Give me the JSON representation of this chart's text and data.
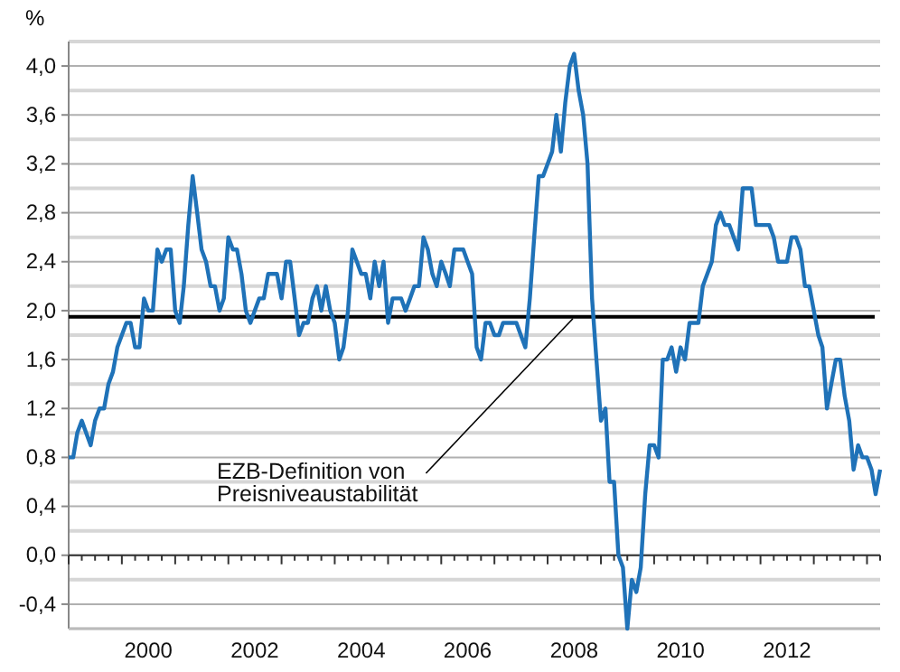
{
  "chart_data": {
    "type": "line",
    "ylabel": "%",
    "x": [
      "1999-01",
      "1999-02",
      "1999-03",
      "1999-04",
      "1999-05",
      "1999-06",
      "1999-07",
      "1999-08",
      "1999-09",
      "1999-10",
      "1999-11",
      "1999-12",
      "2000-01",
      "2000-02",
      "2000-03",
      "2000-04",
      "2000-05",
      "2000-06",
      "2000-07",
      "2000-08",
      "2000-09",
      "2000-10",
      "2000-11",
      "2000-12",
      "2001-01",
      "2001-02",
      "2001-03",
      "2001-04",
      "2001-05",
      "2001-06",
      "2001-07",
      "2001-08",
      "2001-09",
      "2001-10",
      "2001-11",
      "2001-12",
      "2002-01",
      "2002-02",
      "2002-03",
      "2002-04",
      "2002-05",
      "2002-06",
      "2002-07",
      "2002-08",
      "2002-09",
      "2002-10",
      "2002-11",
      "2002-12",
      "2003-01",
      "2003-02",
      "2003-03",
      "2003-04",
      "2003-05",
      "2003-06",
      "2003-07",
      "2003-08",
      "2003-09",
      "2003-10",
      "2003-11",
      "2003-12",
      "2004-01",
      "2004-02",
      "2004-03",
      "2004-04",
      "2004-05",
      "2004-06",
      "2004-07",
      "2004-08",
      "2004-09",
      "2004-10",
      "2004-11",
      "2004-12",
      "2005-01",
      "2005-02",
      "2005-03",
      "2005-04",
      "2005-05",
      "2005-06",
      "2005-07",
      "2005-08",
      "2005-09",
      "2005-10",
      "2005-11",
      "2005-12",
      "2006-01",
      "2006-02",
      "2006-03",
      "2006-04",
      "2006-05",
      "2006-06",
      "2006-07",
      "2006-08",
      "2006-09",
      "2006-10",
      "2006-11",
      "2006-12",
      "2007-01",
      "2007-02",
      "2007-03",
      "2007-04",
      "2007-05",
      "2007-06",
      "2007-07",
      "2007-08",
      "2007-09",
      "2007-10",
      "2007-11",
      "2007-12",
      "2008-01",
      "2008-02",
      "2008-03",
      "2008-04",
      "2008-05",
      "2008-06",
      "2008-07",
      "2008-08",
      "2008-09",
      "2008-10",
      "2008-11",
      "2008-12",
      "2009-01",
      "2009-02",
      "2009-03",
      "2009-04",
      "2009-05",
      "2009-06",
      "2009-07",
      "2009-08",
      "2009-09",
      "2009-10",
      "2009-11",
      "2009-12",
      "2010-01",
      "2010-02",
      "2010-03",
      "2010-04",
      "2010-05",
      "2010-06",
      "2010-07",
      "2010-08",
      "2010-09",
      "2010-10",
      "2010-11",
      "2010-12",
      "2011-01",
      "2011-02",
      "2011-03",
      "2011-04",
      "2011-05",
      "2011-06",
      "2011-07",
      "2011-08",
      "2011-09",
      "2011-10",
      "2011-11",
      "2011-12",
      "2012-01",
      "2012-02",
      "2012-03",
      "2012-04",
      "2012-05",
      "2012-06",
      "2012-07",
      "2012-08",
      "2012-09",
      "2012-10",
      "2012-11",
      "2012-12",
      "2013-01",
      "2013-02",
      "2013-03",
      "2013-04",
      "2013-05",
      "2013-06",
      "2013-07",
      "2013-08",
      "2013-09",
      "2013-10",
      "2013-11",
      "2013-12",
      "2014-01",
      "2014-02",
      "2014-03",
      "2014-04"
    ],
    "series": [
      {
        "color": "#1f72b8",
        "values": [
          0.8,
          0.8,
          1.0,
          1.1,
          1.0,
          0.9,
          1.1,
          1.2,
          1.2,
          1.4,
          1.5,
          1.7,
          1.8,
          1.9,
          1.9,
          1.7,
          1.7,
          2.1,
          2.0,
          2.0,
          2.5,
          2.4,
          2.5,
          2.5,
          2.0,
          1.9,
          2.2,
          2.7,
          3.1,
          2.8,
          2.5,
          2.4,
          2.2,
          2.2,
          2.0,
          2.1,
          2.6,
          2.5,
          2.5,
          2.3,
          2.0,
          1.9,
          2.0,
          2.1,
          2.1,
          2.3,
          2.3,
          2.3,
          2.1,
          2.4,
          2.4,
          2.1,
          1.8,
          1.9,
          1.9,
          2.1,
          2.2,
          2.0,
          2.2,
          2.0,
          1.9,
          1.6,
          1.7,
          2.0,
          2.5,
          2.4,
          2.3,
          2.3,
          2.1,
          2.4,
          2.2,
          2.4,
          1.9,
          2.1,
          2.1,
          2.1,
          2.0,
          2.1,
          2.2,
          2.2,
          2.6,
          2.5,
          2.3,
          2.2,
          2.4,
          2.3,
          2.2,
          2.5,
          2.5,
          2.5,
          2.4,
          2.3,
          1.7,
          1.6,
          1.9,
          1.9,
          1.8,
          1.8,
          1.9,
          1.9,
          1.9,
          1.9,
          1.8,
          1.7,
          2.1,
          2.6,
          3.1,
          3.1,
          3.2,
          3.3,
          3.6,
          3.3,
          3.7,
          4.0,
          4.1,
          3.8,
          3.6,
          3.2,
          2.1,
          1.6,
          1.1,
          1.2,
          0.6,
          0.6,
          0.0,
          -0.1,
          -0.6,
          -0.2,
          -0.3,
          -0.1,
          0.5,
          0.9,
          0.9,
          0.8,
          1.6,
          1.6,
          1.7,
          1.5,
          1.7,
          1.6,
          1.9,
          1.9,
          1.9,
          2.2,
          2.3,
          2.4,
          2.7,
          2.8,
          2.7,
          2.7,
          2.6,
          2.5,
          3.0,
          3.0,
          3.0,
          2.7,
          2.7,
          2.7,
          2.7,
          2.6,
          2.4,
          2.4,
          2.4,
          2.6,
          2.6,
          2.5,
          2.2,
          2.2,
          2.0,
          1.8,
          1.7,
          1.2,
          1.4,
          1.6,
          1.6,
          1.3,
          1.1,
          0.7,
          0.9,
          0.8,
          0.8,
          0.7,
          0.5,
          0.7
        ]
      }
    ],
    "xlim": [
      "1999-01",
      "2014-04"
    ],
    "xticks": [
      {
        "value": "2000-07",
        "label": "2000"
      },
      {
        "value": "2002-07",
        "label": "2002"
      },
      {
        "value": "2004-07",
        "label": "2004"
      },
      {
        "value": "2006-07",
        "label": "2006"
      },
      {
        "value": "2008-07",
        "label": "2008"
      },
      {
        "value": "2010-07",
        "label": "2010"
      },
      {
        "value": "2012-07",
        "label": "2012"
      }
    ],
    "ylim": [
      -0.6,
      4.2
    ],
    "yticks": [
      {
        "value": -0.4,
        "label": "-0,4"
      },
      {
        "value": 0,
        "label": "0,0"
      },
      {
        "value": 0.4,
        "label": "0,4"
      },
      {
        "value": 0.8,
        "label": "0,8"
      },
      {
        "value": 1.2,
        "label": "1,2"
      },
      {
        "value": 1.6,
        "label": "1,6"
      },
      {
        "value": 2,
        "label": "2,0"
      },
      {
        "value": 2.4,
        "label": "2,4"
      },
      {
        "value": 2.8,
        "label": "2,8"
      },
      {
        "value": 3.2,
        "label": "3,2"
      },
      {
        "value": 3.6,
        "label": "3,6"
      },
      {
        "value": 4,
        "label": "4,0"
      }
    ],
    "grid": "y",
    "ref_lines": [
      {
        "axis": "y",
        "value": 1.95,
        "label": "EZB-Definition von Preisniveaustabilität",
        "color": "#000000"
      }
    ]
  }
}
